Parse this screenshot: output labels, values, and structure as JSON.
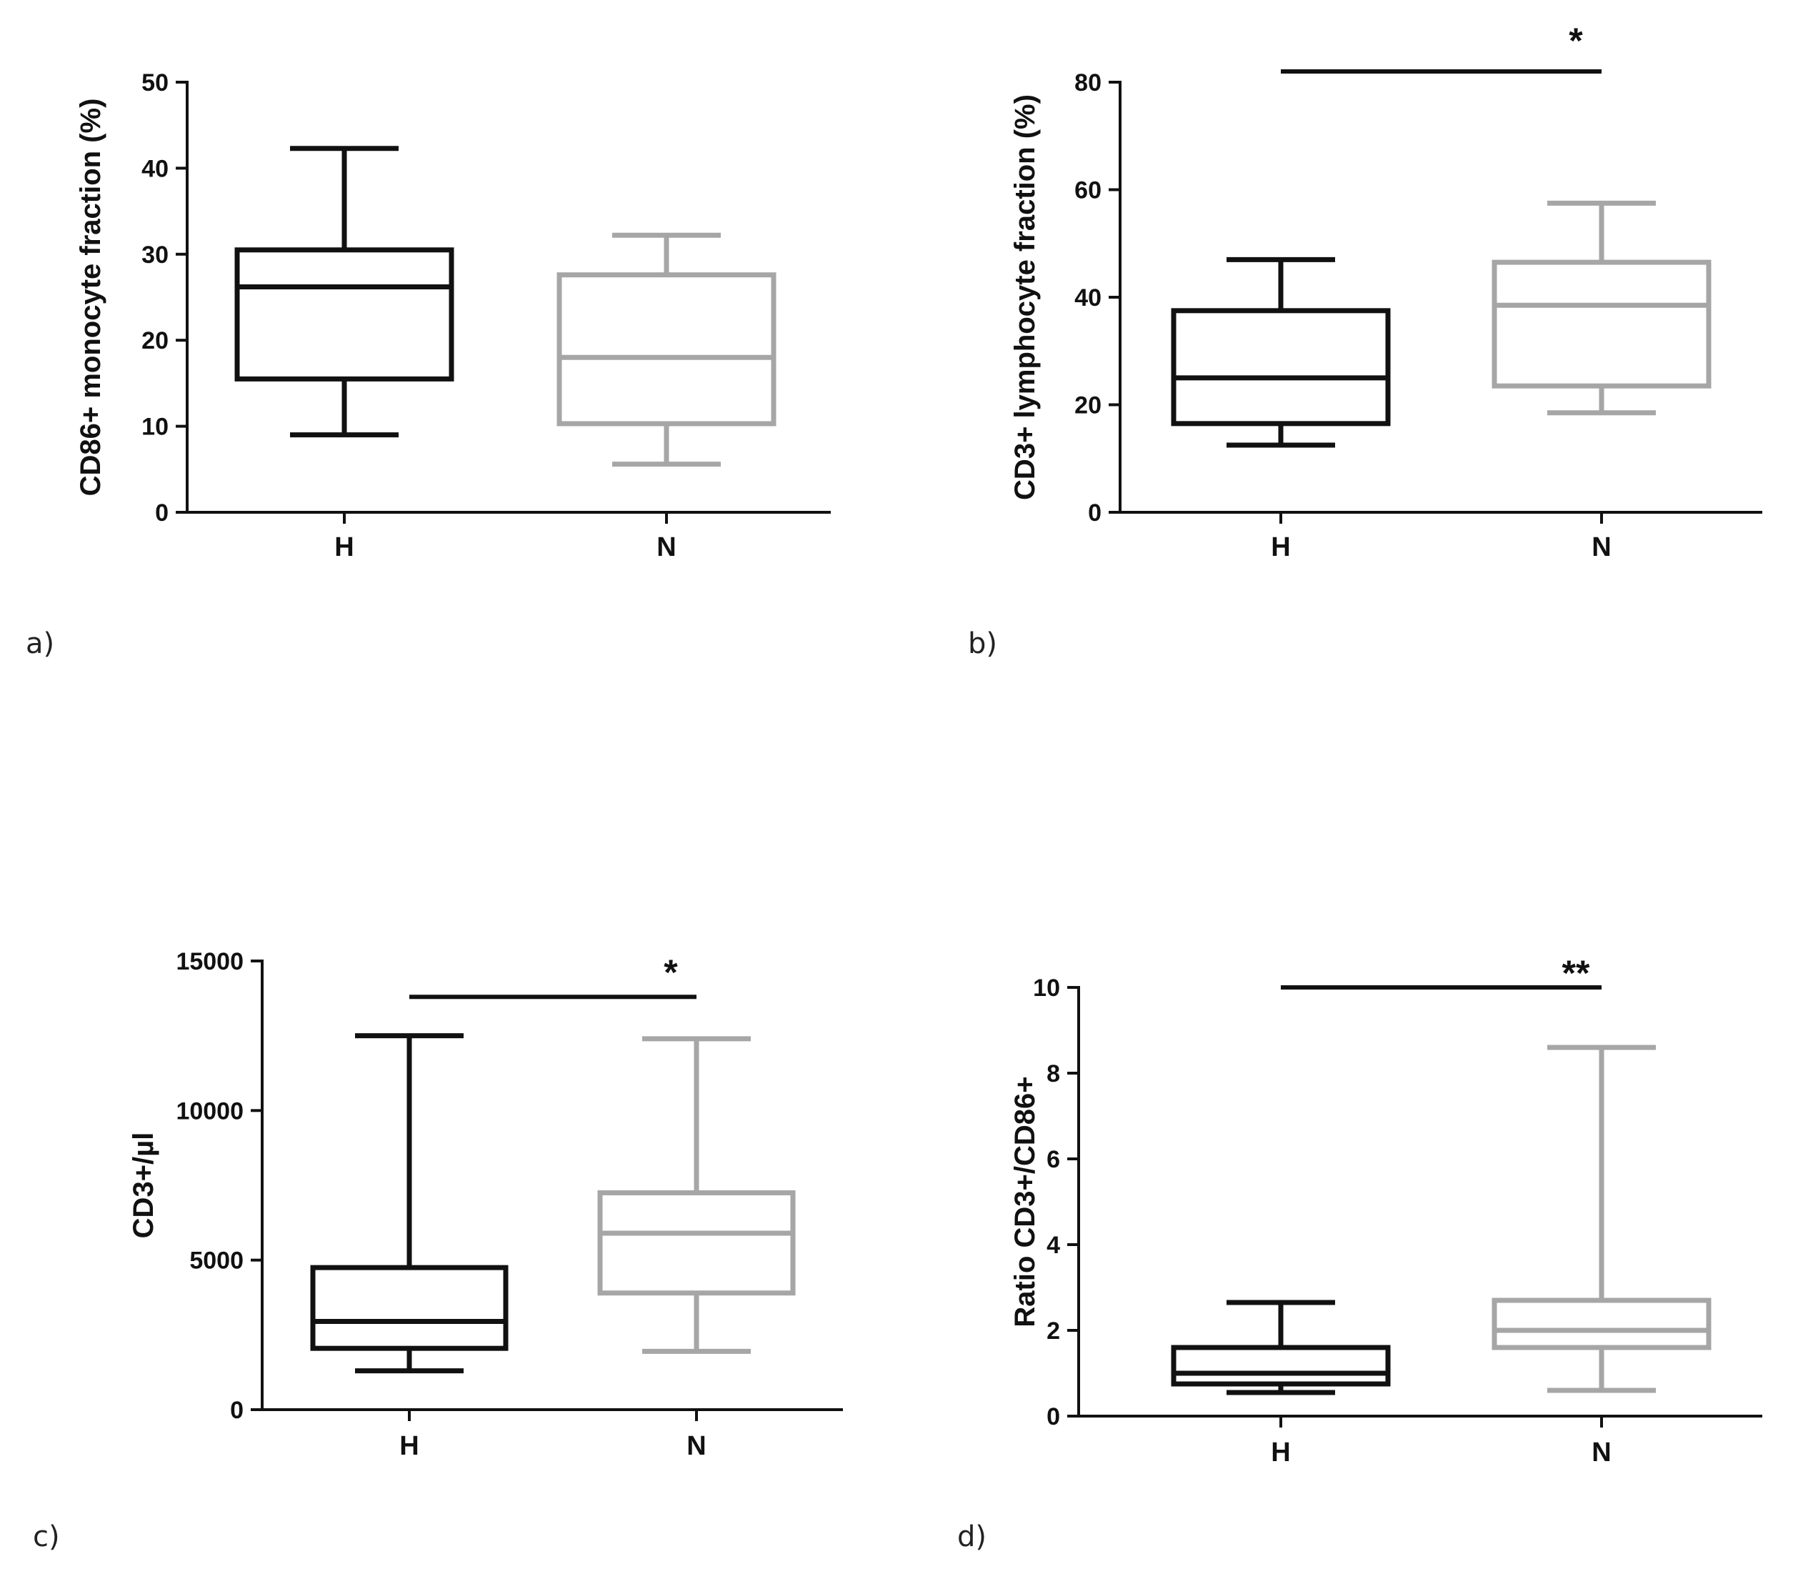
{
  "colors": {
    "H": "#111111",
    "N": "#a6a6a6",
    "axis": "#111111"
  },
  "chart_data": [
    {
      "panel": "a)",
      "type": "boxplot",
      "ylabel": "CD86+ monocyte fraction (%)",
      "ylim": [
        0,
        50
      ],
      "yticks": [
        0,
        10,
        20,
        30,
        40,
        50
      ],
      "ytick_labels": [
        "0",
        "10",
        "20",
        "30",
        "40",
        "50"
      ],
      "categories": [
        "H",
        "N"
      ],
      "boxes": [
        {
          "category": "H",
          "min": 9,
          "q1": 15.5,
          "median": 26.2,
          "q3": 30.5,
          "max": 42.3
        },
        {
          "category": "N",
          "min": 5.6,
          "q1": 10.3,
          "median": 18,
          "q3": 27.6,
          "max": 32.2
        }
      ],
      "significance": null
    },
    {
      "panel": "b)",
      "type": "boxplot",
      "ylabel": "CD3+ lymphocyte fraction  (%)",
      "ylim": [
        0,
        80
      ],
      "yticks": [
        0,
        20,
        40,
        60,
        80
      ],
      "ytick_labels": [
        "0",
        "20",
        "40",
        "60",
        "80"
      ],
      "categories": [
        "H",
        "N"
      ],
      "boxes": [
        {
          "category": "H",
          "min": 12.5,
          "q1": 16.5,
          "median": 25,
          "q3": 37.5,
          "max": 47
        },
        {
          "category": "N",
          "min": 18.5,
          "q1": 23.5,
          "median": 38.5,
          "q3": 46.5,
          "max": 57.5
        }
      ],
      "significance": {
        "label": "*",
        "from": "H",
        "to": "N",
        "y": 82
      }
    },
    {
      "panel": "c)",
      "type": "boxplot",
      "ylabel": "CD3+/µl",
      "ylim": [
        0,
        15000
      ],
      "yticks": [
        0,
        5000,
        10000,
        15000
      ],
      "ytick_labels": [
        "0",
        "5000",
        "10000",
        "15000"
      ],
      "categories": [
        "H",
        "N"
      ],
      "boxes": [
        {
          "category": "H",
          "min": 1300,
          "q1": 2050,
          "median": 2950,
          "q3": 4750,
          "max": 12500
        },
        {
          "category": "N",
          "min": 1950,
          "q1": 3900,
          "median": 5900,
          "q3": 7250,
          "max": 12400
        }
      ],
      "significance": {
        "label": "*",
        "from": "H",
        "to": "N",
        "y": 13800
      }
    },
    {
      "panel": "d)",
      "type": "boxplot",
      "ylabel": "Ratio CD3+/CD86+",
      "ylim": [
        0,
        10
      ],
      "yticks": [
        0,
        2,
        4,
        6,
        8,
        10
      ],
      "ytick_labels": [
        "0",
        "2",
        "4",
        "6",
        "8",
        "10"
      ],
      "categories": [
        "H",
        "N"
      ],
      "boxes": [
        {
          "category": "H",
          "min": 0.55,
          "q1": 0.75,
          "median": 1,
          "q3": 1.6,
          "max": 2.65
        },
        {
          "category": "N",
          "min": 0.6,
          "q1": 1.6,
          "median": 2,
          "q3": 2.7,
          "max": 8.6
        }
      ],
      "significance": {
        "label": "**",
        "from": "H",
        "to": "N",
        "y": 10
      }
    }
  ]
}
